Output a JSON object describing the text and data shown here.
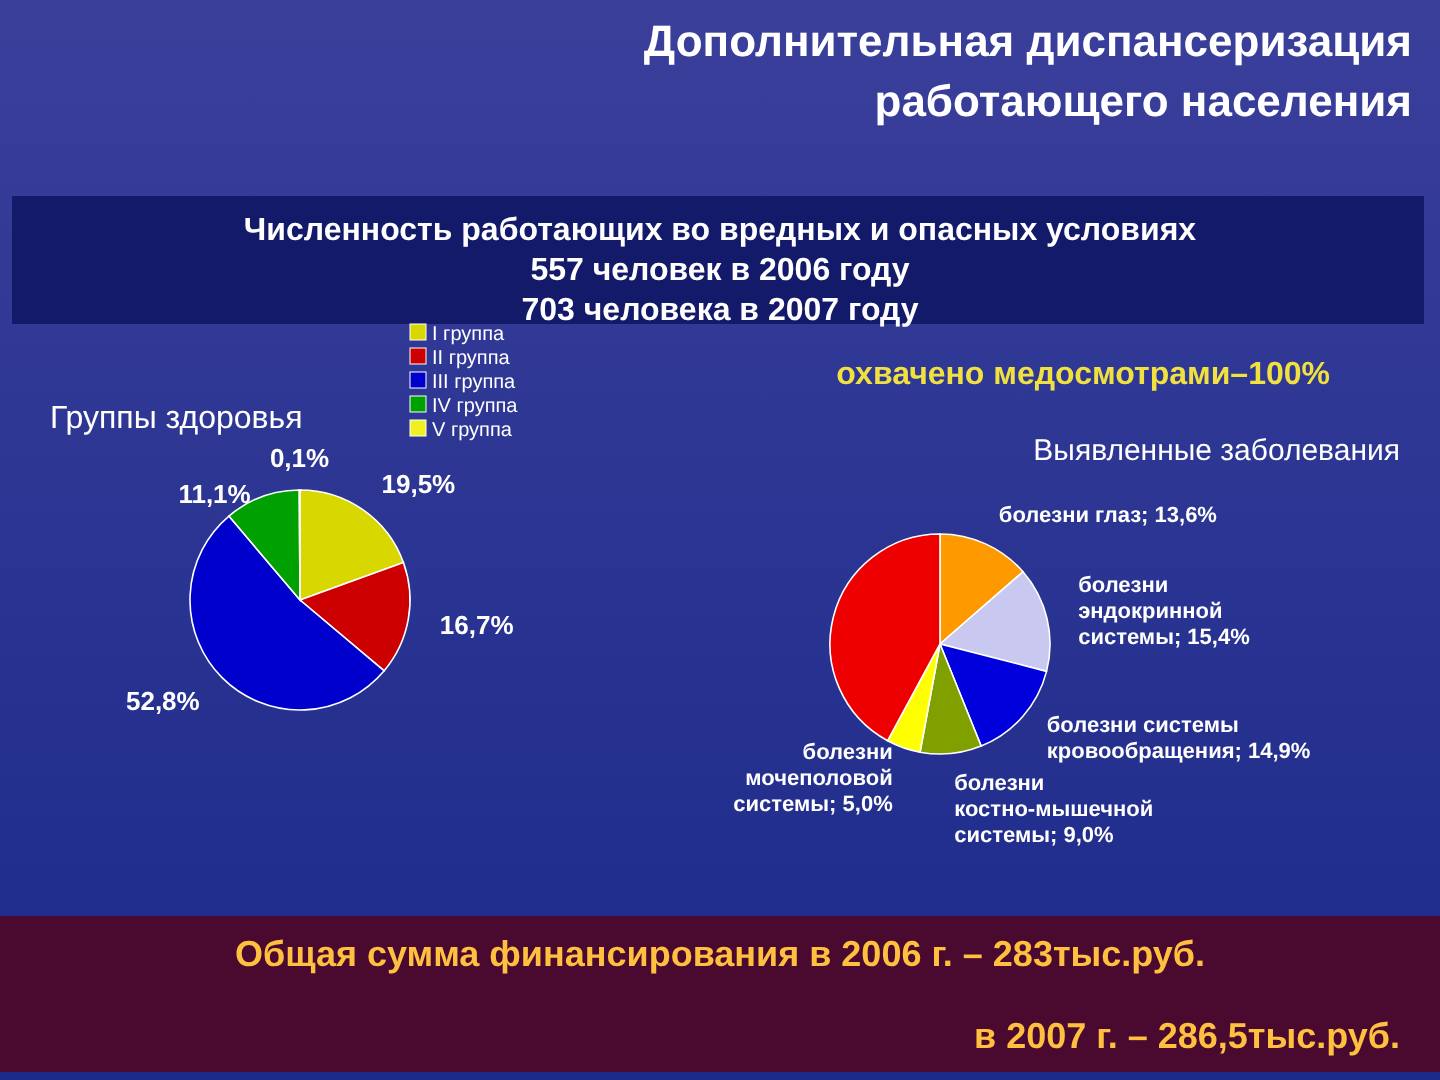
{
  "chart_data": [
    {
      "type": "other",
      "title": "Дополнительная диспансеризация работающего населения",
      "annotations": [
        "Численность работающих во вредных и опасных условиях",
        "557 человек в 2006 году",
        "703 человека в 2007 году",
        "охвачено медосмотрами–100%",
        "Общая сумма финансирования в 2006 г. – 283тыс.руб.",
        "в 2007 г. – 286,5тыс.руб."
      ]
    },
    {
      "type": "pie",
      "title": "Группы здоровья",
      "categories": [
        "I группа",
        "II группа",
        "III группа",
        "IV группа",
        "V группа"
      ],
      "values": [
        19.5,
        16.7,
        52.8,
        11.1,
        0.1
      ],
      "colors": [
        "#d8d800",
        "#cc0000",
        "#0000cc",
        "#00a000",
        "#f0f020"
      ],
      "value_labels": [
        "19,5%",
        "16,7%",
        "52,8%",
        "11,1%",
        "0,1%"
      ],
      "legend": "top right"
    },
    {
      "type": "pie",
      "title": "Выявленные заболевания",
      "categories": [
        "болезни глаз",
        "болезни эндокринной системы",
        "болезни системы кровообращения",
        "болезни костно-мышечной системы",
        "болезни мочеполовой системы",
        null
      ],
      "values": [
        13.6,
        15.4,
        14.9,
        9.0,
        5.0,
        42.1
      ],
      "colors": [
        "#ff9900",
        "#c8c8f0",
        "#0000dd",
        "#80a000",
        "#ffff00",
        "#ee0000"
      ],
      "value_labels": [
        "13,6%",
        "15,4%",
        "14,9%",
        "9,0%",
        "5,0%",
        null
      ]
    }
  ]
}
